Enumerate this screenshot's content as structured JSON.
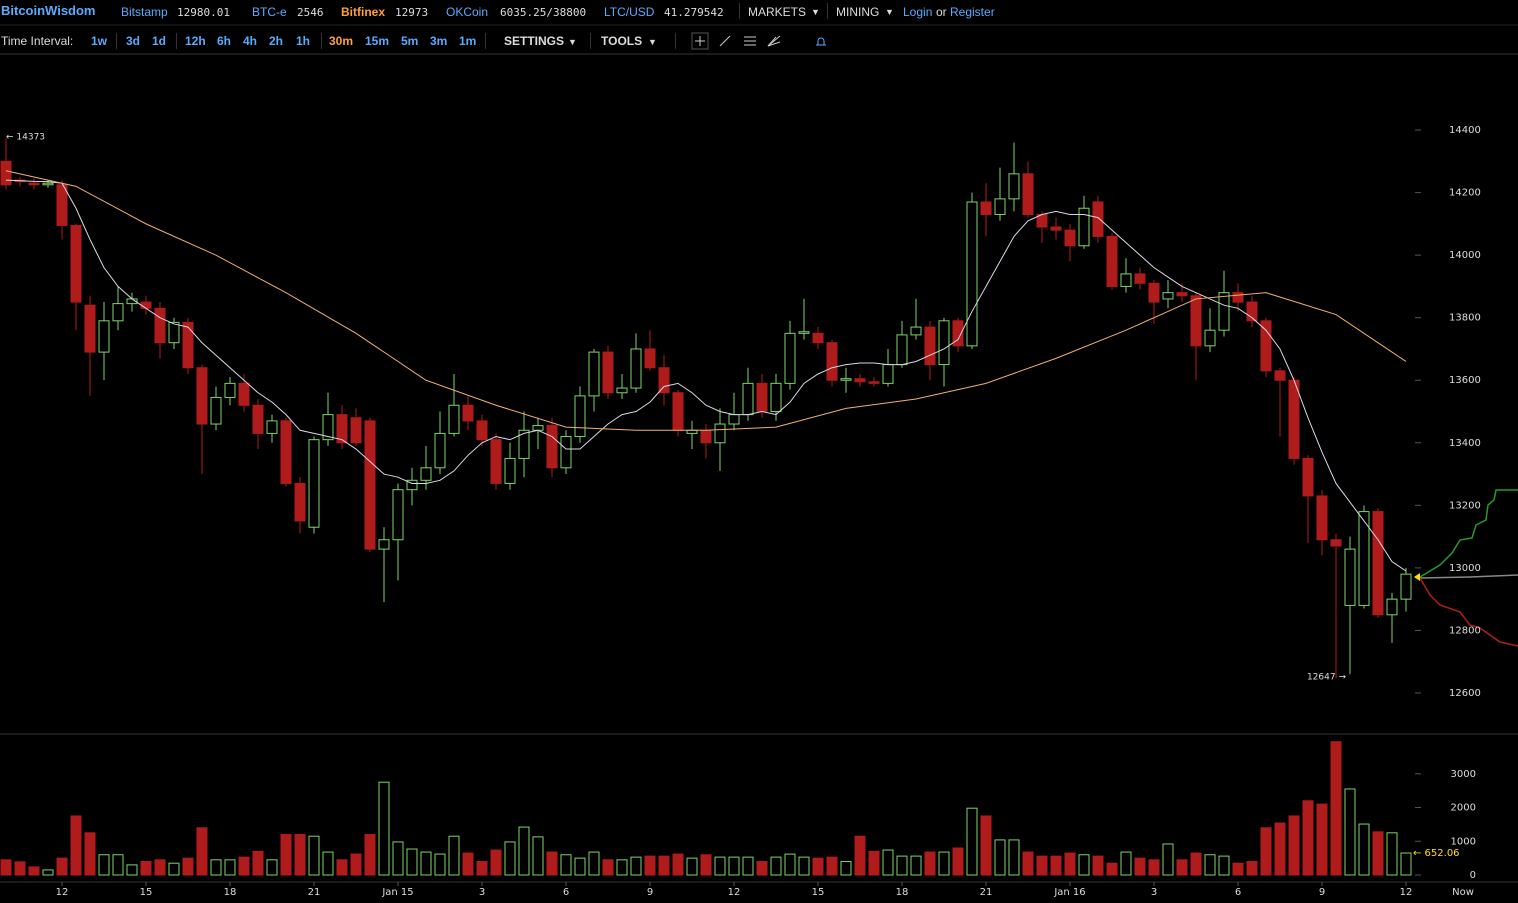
{
  "nav": {
    "brand": "BitcoinWisdom",
    "tickers": [
      {
        "name": "Bitstamp",
        "price": "12980.01"
      },
      {
        "name": "BTC-e",
        "price": "2546"
      },
      {
        "name": "Bitfinex",
        "price": "12973"
      },
      {
        "name": "OKCoin",
        "price": "6035.25/38800"
      },
      {
        "name": "LTC/USD",
        "price": "41.279542"
      }
    ],
    "menus": [
      "MARKETS",
      "MINING"
    ],
    "login": "Login",
    "or": "or",
    "register": "Register"
  },
  "toolbar": {
    "label": "Time Interval:",
    "intervals": [
      "1w",
      "3d",
      "1d",
      "12h",
      "6h",
      "4h",
      "2h",
      "1h",
      "30m",
      "15m",
      "5m",
      "3m",
      "1m"
    ],
    "selected": "30m",
    "menus": [
      "SETTINGS",
      "TOOLS"
    ]
  },
  "chart_data": {
    "type": "candlestick",
    "up_color": "#7fd36a",
    "down_color": "#b01c1c",
    "open": [
      14300,
      14240,
      14230,
      14225,
      14225,
      14095,
      13840,
      13690,
      13790,
      13845,
      13850,
      13830,
      13720,
      13785,
      13640,
      13460,
      13545,
      13590,
      13520,
      13430,
      13470,
      13270,
      13130,
      13410,
      13490,
      13480,
      13470,
      13060,
      13090,
      13250,
      13280,
      13320,
      13430,
      13520,
      13470,
      13410,
      13270,
      13350,
      13440,
      13455,
      13320,
      13420,
      13550,
      13690,
      13560,
      13575,
      13700,
      13640,
      13560,
      13430,
      13440,
      13400,
      13460,
      13490,
      13590,
      13500,
      13590,
      13750,
      13750,
      13720,
      13600,
      13605,
      13595,
      13590,
      13650,
      13745,
      13770,
      13650,
      13790,
      13710,
      14170,
      14130,
      14180,
      14260,
      14130,
      14090,
      14080,
      14030,
      14170,
      14060,
      13900,
      13940,
      13910,
      13860,
      13880,
      13870,
      13710,
      13760,
      13880,
      13850,
      13790,
      13630,
      13600,
      13350,
      13230,
      13090,
      12880,
      12880,
      13180,
      12850,
      12900
    ],
    "high": [
      14373,
      14250,
      14245,
      14240,
      14240,
      14100,
      13870,
      13850,
      13900,
      13880,
      13870,
      13850,
      13800,
      13800,
      13650,
      13580,
      13610,
      13620,
      13540,
      13490,
      13480,
      13290,
      13420,
      13560,
      13520,
      13510,
      13480,
      13130,
      13270,
      13320,
      13390,
      13500,
      13620,
      13550,
      13490,
      13430,
      13400,
      13500,
      13480,
      13480,
      13440,
      13580,
      13700,
      13710,
      13620,
      13750,
      13760,
      13680,
      13570,
      13470,
      13460,
      13510,
      13560,
      13640,
      13620,
      13620,
      13790,
      13860,
      13770,
      13730,
      13640,
      13620,
      13610,
      13700,
      13790,
      13860,
      13790,
      13800,
      13800,
      14200,
      14230,
      14280,
      14360,
      14300,
      14140,
      14120,
      14100,
      14190,
      14190,
      14070,
      13990,
      13960,
      13920,
      13920,
      13910,
      13880,
      13830,
      13950,
      13910,
      13870,
      13800,
      13640,
      13610,
      13360,
      13250,
      13110,
      13100,
      13200,
      13190,
      12920,
      13000
    ],
    "low": [
      14210,
      14220,
      14210,
      14215,
      14050,
      13760,
      13550,
      13600,
      13760,
      13820,
      13810,
      13670,
      13700,
      13620,
      13300,
      13440,
      13520,
      13500,
      13380,
      13400,
      13260,
      13110,
      13110,
      13390,
      13380,
      13390,
      13050,
      12890,
      12960,
      13200,
      13250,
      13300,
      13420,
      13440,
      13390,
      13250,
      13250,
      13290,
      13380,
      13290,
      13300,
      13400,
      13500,
      13540,
      13540,
      13560,
      13630,
      13520,
      13420,
      13380,
      13350,
      13310,
      13440,
      13470,
      13480,
      13470,
      13570,
      13730,
      13700,
      13580,
      13560,
      13580,
      13580,
      13580,
      13640,
      13730,
      13600,
      13580,
      13690,
      13700,
      14060,
      14110,
      14140,
      14120,
      14040,
      14050,
      13980,
      14020,
      14040,
      13890,
      13880,
      13890,
      13780,
      13830,
      13850,
      13600,
      13690,
      13740,
      13820,
      13770,
      13610,
      13420,
      13330,
      13080,
      13040,
      12647,
      12660,
      12870,
      12840,
      12760,
      12860
    ],
    "close": [
      14225,
      14235,
      14225,
      14230,
      14095,
      13850,
      13690,
      13790,
      13845,
      13860,
      13830,
      13720,
      13785,
      13640,
      13460,
      13545,
      13590,
      13520,
      13430,
      13470,
      13270,
      13150,
      13410,
      13490,
      13400,
      13400,
      13060,
      13090,
      13250,
      13280,
      13320,
      13430,
      13520,
      13470,
      13410,
      13270,
      13350,
      13440,
      13455,
      13320,
      13420,
      13550,
      13690,
      13560,
      13575,
      13700,
      13640,
      13560,
      13440,
      13440,
      13400,
      13460,
      13490,
      13590,
      13500,
      13590,
      13750,
      13755,
      13720,
      13600,
      13605,
      13595,
      13590,
      13650,
      13745,
      13770,
      13650,
      13790,
      13710,
      14170,
      14130,
      14180,
      14260,
      14130,
      14090,
      14080,
      14030,
      14150,
      14060,
      13900,
      13940,
      13910,
      13850,
      13880,
      13870,
      13710,
      13760,
      13880,
      13850,
      13790,
      13630,
      13600,
      13350,
      13230,
      13090,
      13070,
      13060,
      13180,
      12850,
      12900,
      12980
    ],
    "ylim": [
      12472,
      14640
    ],
    "yticks": [
      12600,
      12800,
      13000,
      13200,
      13400,
      13600,
      13800,
      14000,
      14200,
      14400
    ],
    "xticks": [
      {
        "value": 4,
        "label": "12"
      },
      {
        "value": 10,
        "label": "15"
      },
      {
        "value": 16,
        "label": "18"
      },
      {
        "value": 22,
        "label": "21"
      },
      {
        "value": 28,
        "label": "Jan 15"
      },
      {
        "value": 34,
        "label": "3"
      },
      {
        "value": 40,
        "label": "6"
      },
      {
        "value": 46,
        "label": "9"
      },
      {
        "value": 52,
        "label": "12"
      },
      {
        "value": 58,
        "label": "15"
      },
      {
        "value": 64,
        "label": "18"
      },
      {
        "value": 70,
        "label": "21"
      },
      {
        "value": 76,
        "label": "Jan 16"
      },
      {
        "value": 82,
        "label": "3"
      },
      {
        "value": 88,
        "label": "6"
      },
      {
        "value": 94,
        "label": "9"
      },
      {
        "value": 100,
        "label": "12"
      }
    ],
    "now_label": "Now",
    "high_label": "← 14373",
    "low_label": "12647 →",
    "lines": [
      {
        "color": "#d8d8e8",
        "values": [
          14240,
          14238,
          14236,
          14235,
          14230,
          14150,
          14050,
          13960,
          13900,
          13860,
          13830,
          13800,
          13780,
          13770,
          13720,
          13680,
          13640,
          13600,
          13560,
          13530,
          13490,
          13440,
          13430,
          13420,
          13410,
          13380,
          13340,
          13300,
          13290,
          13270,
          13270,
          13280,
          13310,
          13360,
          13400,
          13420,
          13410,
          13430,
          13440,
          13420,
          13380,
          13380,
          13420,
          13460,
          13490,
          13500,
          13530,
          13580,
          13590,
          13560,
          13520,
          13500,
          13490,
          13490,
          13500,
          13490,
          13530,
          13590,
          13620,
          13640,
          13650,
          13655,
          13655,
          13650,
          13650,
          13660,
          13680,
          13700,
          13730,
          13820,
          13900,
          13980,
          14060,
          14110,
          14130,
          14140,
          14130,
          14130,
          14120,
          14080,
          14040,
          14000,
          13960,
          13930,
          13900,
          13880,
          13860,
          13840,
          13830,
          13800,
          13760,
          13700,
          13600,
          13480,
          13370,
          13270,
          13210,
          13150,
          13090,
          13020,
          12990
        ]
      },
      {
        "color": "#f0b070",
        "x": [
          0,
          5,
          10,
          15,
          20,
          25,
          30,
          35,
          40,
          45,
          50,
          55,
          60,
          65,
          70,
          75,
          80,
          85,
          90,
          95,
          100
        ],
        "values": [
          14270,
          14220,
          14100,
          14000,
          13880,
          13750,
          13600,
          13520,
          13450,
          13440,
          13440,
          13450,
          13510,
          13540,
          13590,
          13670,
          13760,
          13860,
          13880,
          13810,
          13660
        ]
      }
    ],
    "volume": {
      "values": [
        450,
        390,
        240,
        150,
        500,
        1750,
        1250,
        600,
        600,
        300,
        400,
        450,
        350,
        500,
        1400,
        450,
        450,
        530,
        700,
        450,
        1200,
        1200,
        1150,
        680,
        450,
        620,
        1200,
        2750,
        980,
        770,
        680,
        620,
        1150,
        650,
        400,
        740,
        980,
        1420,
        1130,
        680,
        600,
        500,
        680,
        450,
        450,
        530,
        560,
        560,
        620,
        500,
        600,
        530,
        530,
        530,
        400,
        530,
        620,
        530,
        500,
        530,
        400,
        1150,
        700,
        740,
        560,
        560,
        680,
        680,
        800,
        1980,
        1750,
        1040,
        1040,
        680,
        560,
        560,
        650,
        600,
        560,
        350,
        680,
        500,
        450,
        920,
        450,
        650,
        600,
        560,
        350,
        400,
        1400,
        1540,
        1750,
        2200,
        2100,
        3950,
        2550,
        1510,
        1280,
        1250,
        652.06
      ],
      "ylim": [
        0,
        4150
      ],
      "yticks": [
        0,
        1000,
        2000,
        3000
      ],
      "current_label": "← 652.06"
    }
  }
}
